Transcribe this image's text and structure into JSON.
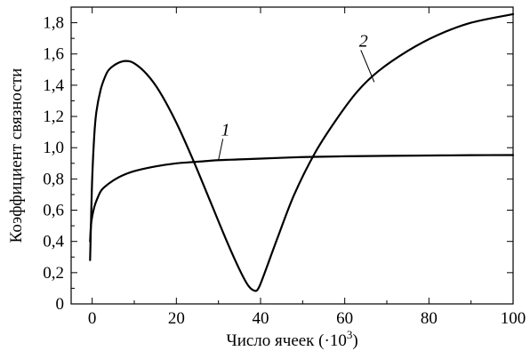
{
  "chart_data": {
    "type": "line",
    "xlabel": "Число ячеек (·10",
    "xlabel_sup": "3",
    "xlabel_close": ")",
    "ylabel": "Коэффициент связности",
    "xlim": [
      -5,
      100
    ],
    "ylim": [
      0,
      1.9
    ],
    "x_ticks": [
      0,
      20,
      40,
      60,
      80,
      100
    ],
    "x_tick_labels": [
      "0",
      "20",
      "40",
      "60",
      "80",
      "100"
    ],
    "y_ticks": [
      0,
      0.2,
      0.4,
      0.6,
      0.8,
      1.0,
      1.2,
      1.4,
      1.6,
      1.8
    ],
    "y_tick_labels": [
      "0",
      "0,2",
      "0,4",
      "0,6",
      "0,8",
      "1,0",
      "1,2",
      "1,4",
      "1,6",
      "1,8"
    ],
    "grid": false,
    "series": [
      {
        "name": "1",
        "x": [
          -0.5,
          -0.3,
          0,
          0.5,
          1,
          2,
          3,
          5,
          7,
          10,
          15,
          20,
          25,
          30,
          35,
          40,
          50,
          60,
          70,
          80,
          90,
          100
        ],
        "y": [
          0.4,
          0.5,
          0.56,
          0.62,
          0.66,
          0.72,
          0.75,
          0.79,
          0.82,
          0.85,
          0.88,
          0.9,
          0.91,
          0.92,
          0.925,
          0.93,
          0.94,
          0.945,
          0.948,
          0.95,
          0.952,
          0.953
        ]
      },
      {
        "name": "2",
        "x": [
          -0.5,
          -0.3,
          0,
          0.5,
          1,
          2,
          3,
          4,
          6,
          8,
          10,
          13,
          16,
          20,
          24,
          28,
          32,
          35,
          37,
          38.5,
          39.5,
          41,
          44,
          48,
          53,
          58,
          63,
          68,
          75,
          82,
          90,
          100
        ],
        "y": [
          0.28,
          0.5,
          0.8,
          1.08,
          1.23,
          1.37,
          1.45,
          1.5,
          1.54,
          1.555,
          1.54,
          1.47,
          1.36,
          1.16,
          0.92,
          0.66,
          0.4,
          0.22,
          0.12,
          0.085,
          0.1,
          0.2,
          0.42,
          0.7,
          0.97,
          1.18,
          1.36,
          1.49,
          1.62,
          1.72,
          1.8,
          1.855
        ]
      }
    ],
    "annotations": [
      {
        "series": "1",
        "text": "1",
        "at_x": 30,
        "at_y": 0.92
      },
      {
        "series": "2",
        "text": "2",
        "at_x": 67,
        "at_y": 1.42
      }
    ]
  }
}
